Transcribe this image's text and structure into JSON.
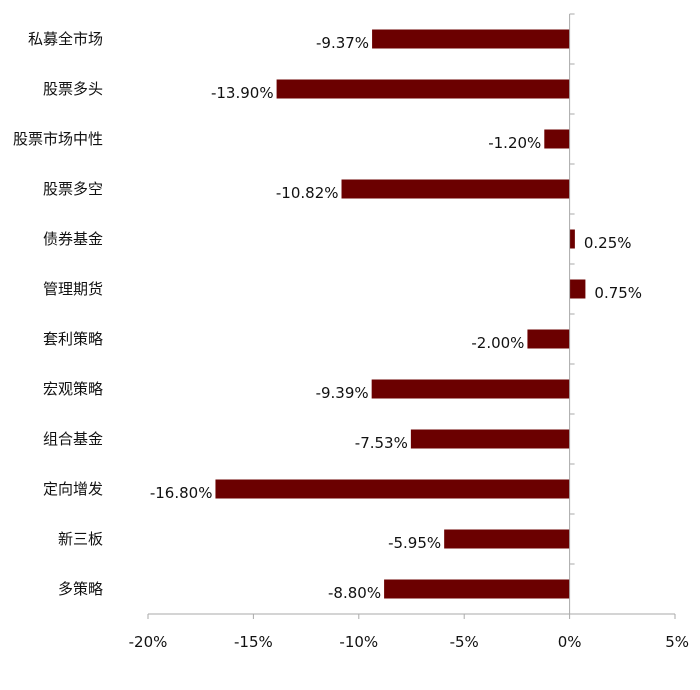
{
  "chart_data": {
    "type": "bar",
    "orientation": "horizontal",
    "title": "",
    "xlabel": "",
    "ylabel": "",
    "categories": [
      "私募全市场",
      "股票多头",
      "股票市场中性",
      "股票多空",
      "债券基金",
      "管理期货",
      "套利策略",
      "宏观策略",
      "组合基金",
      "定向增发",
      "新三板",
      "多策略"
    ],
    "values": [
      -9.37,
      -13.9,
      -1.2,
      -10.82,
      0.25,
      0.75,
      -2.0,
      -9.39,
      -7.53,
      -16.8,
      -5.95,
      -8.8
    ],
    "value_labels": [
      "-9.37%",
      "-13.90%",
      "-1.20%",
      "-10.82%",
      "0.25%",
      "0.75%",
      "-2.00%",
      "-9.39%",
      "-7.53%",
      "-16.80%",
      "-5.95%",
      "-8.80%"
    ],
    "xlim": [
      -20,
      5
    ],
    "xticks": [
      -20,
      -15,
      -10,
      -5,
      0,
      5
    ],
    "xtick_labels": [
      "-20%",
      "-15%",
      "-10%",
      "-5%",
      "0%",
      "5%"
    ],
    "grid": false,
    "legend": "none",
    "colors": {
      "bar": "#6b0000",
      "axis": "#aaaaaa",
      "text": "#111111"
    }
  }
}
